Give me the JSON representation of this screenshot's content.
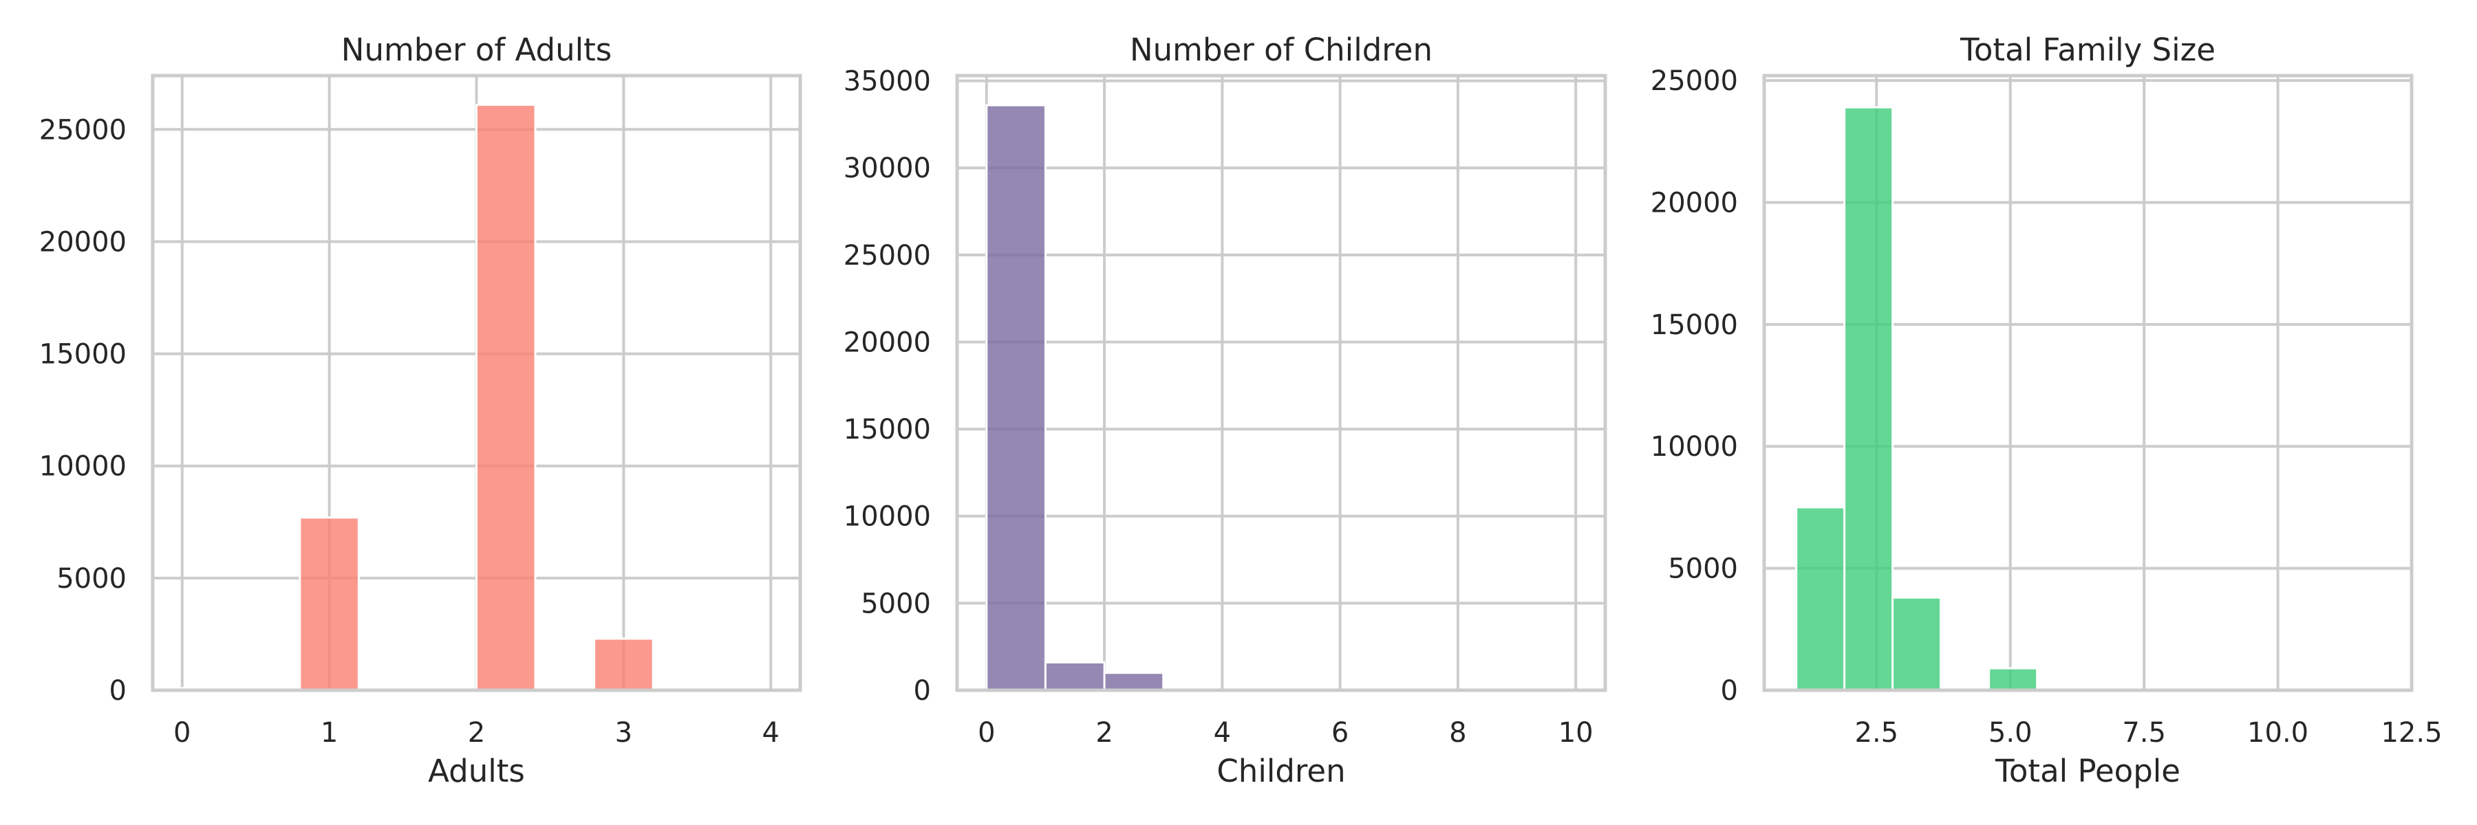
{
  "chart_data": [
    {
      "type": "bar",
      "title": "Number of Adults",
      "xlabel": "Adults",
      "ylabel": "",
      "color": "#fa8072",
      "opacity": 0.8,
      "xlim": [
        -0.2,
        4.2
      ],
      "ylim": [
        0,
        27400
      ],
      "xticks": [
        0,
        1,
        2,
        3,
        4
      ],
      "yticks": [
        0,
        5000,
        10000,
        15000,
        20000,
        25000
      ],
      "xtick_labels": [
        "0",
        "1",
        "2",
        "3",
        "4"
      ],
      "ytick_labels": [
        "0",
        "5000",
        "10000",
        "15000",
        "20000",
        "25000"
      ],
      "grid": true,
      "bins": [
        {
          "x0": 0.0,
          "x1": 0.4,
          "value": 100
        },
        {
          "x0": 0.8,
          "x1": 1.2,
          "value": 7700
        },
        {
          "x0": 2.0,
          "x1": 2.4,
          "value": 26100
        },
        {
          "x0": 2.8,
          "x1": 3.2,
          "value": 2300
        }
      ]
    },
    {
      "type": "bar",
      "title": "Number of Children",
      "xlabel": "Children",
      "ylabel": "",
      "color": "#7b6ba0",
      "opacity": 0.8,
      "xlim": [
        -0.5,
        10.5
      ],
      "ylim": [
        0,
        35300
      ],
      "xticks": [
        0,
        2,
        4,
        6,
        8,
        10
      ],
      "yticks": [
        0,
        5000,
        10000,
        15000,
        20000,
        25000,
        30000,
        35000
      ],
      "xtick_labels": [
        "0",
        "2",
        "4",
        "6",
        "8",
        "10"
      ],
      "ytick_labels": [
        "0",
        "5000",
        "10000",
        "15000",
        "20000",
        "25000",
        "30000",
        "35000"
      ],
      "grid": true,
      "bins": [
        {
          "x0": 0,
          "x1": 1,
          "value": 33600
        },
        {
          "x0": 1,
          "x1": 2,
          "value": 1600
        },
        {
          "x0": 2,
          "x1": 3,
          "value": 1000
        }
      ]
    },
    {
      "type": "bar",
      "title": "Total Family Size",
      "xlabel": "Total People",
      "ylabel": "",
      "color": "#3dcd7a",
      "opacity": 0.8,
      "xlim": [
        0.4,
        12.5
      ],
      "ylim": [
        0,
        25200
      ],
      "xticks": [
        2.5,
        5.0,
        7.5,
        10.0,
        12.5
      ],
      "yticks": [
        0,
        5000,
        10000,
        15000,
        20000,
        25000
      ],
      "xtick_labels": [
        "2.5",
        "5.0",
        "7.5",
        "10.0",
        "12.5"
      ],
      "ytick_labels": [
        "0",
        "5000",
        "10000",
        "15000",
        "20000",
        "25000"
      ],
      "grid": true,
      "bins": [
        {
          "x0": 1.0,
          "x1": 1.9,
          "value": 7500
        },
        {
          "x0": 1.9,
          "x1": 2.8,
          "value": 23900
        },
        {
          "x0": 2.8,
          "x1": 3.7,
          "value": 3800
        },
        {
          "x0": 4.6,
          "x1": 5.5,
          "value": 900
        }
      ]
    }
  ]
}
